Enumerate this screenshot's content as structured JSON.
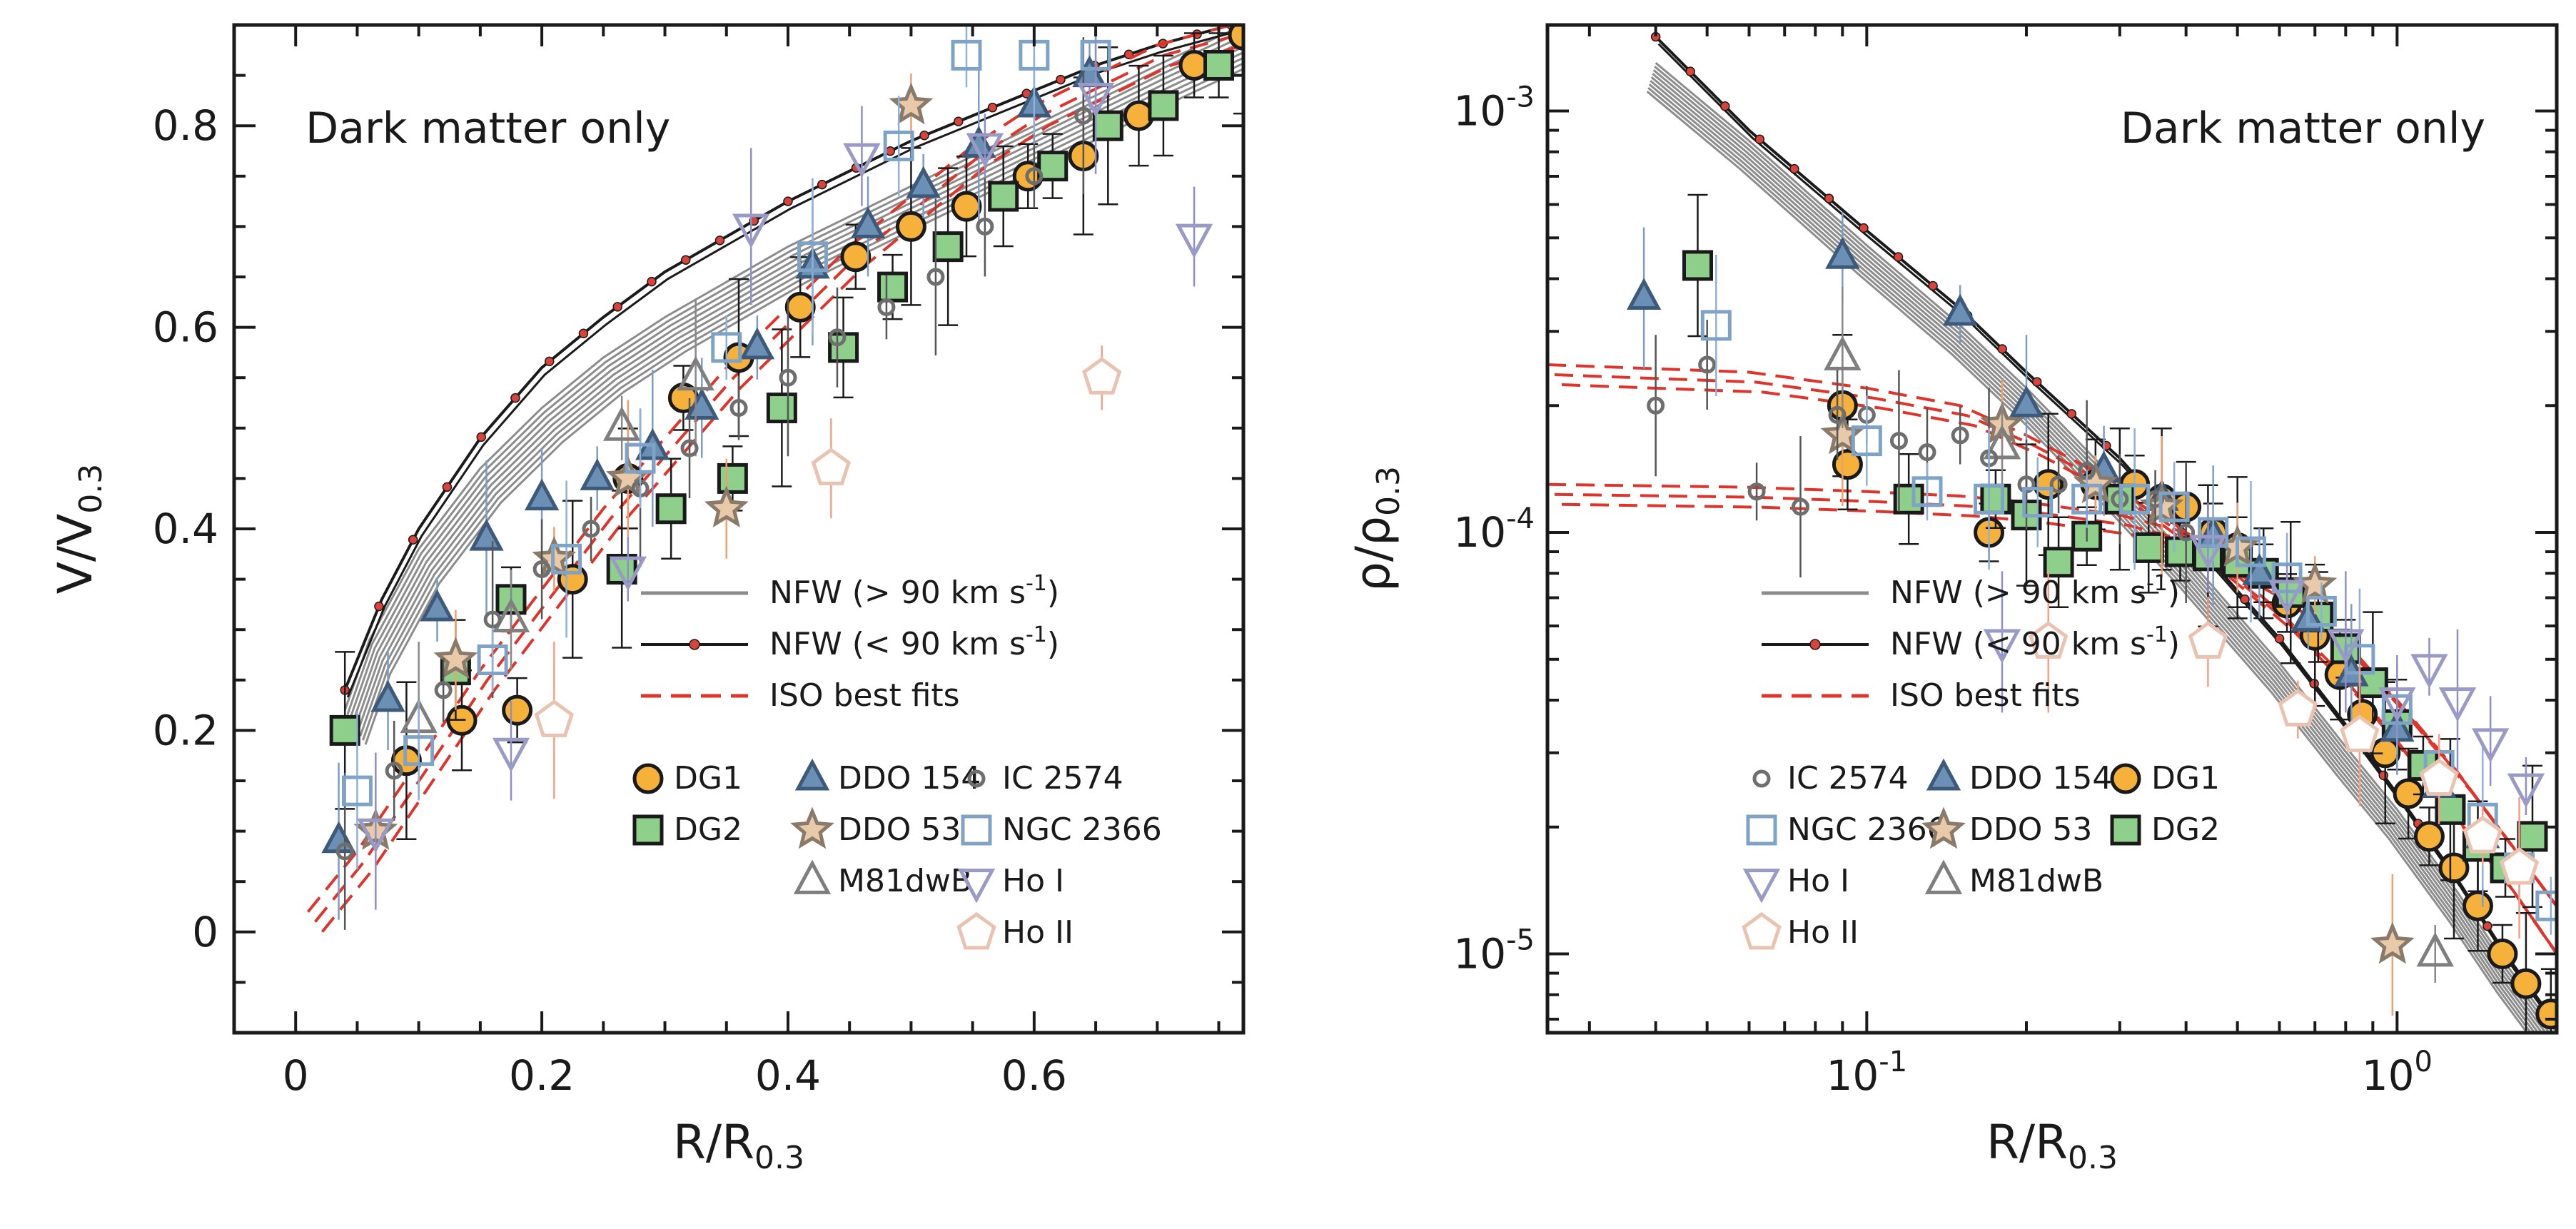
{
  "colors": {
    "nfw_high": "#8c8c8c",
    "nfw_low": "#1a1a1a",
    "nfw_low_marker": "#d9433a",
    "iso": "#e0342b",
    "DG1": "#f6b13a",
    "DG2": "#8fcf8c",
    "DDO154": "#6b8fb5",
    "DDO53": "#e8c9a8",
    "M81dwB": "#7f7f7f",
    "IC2574": "#6e6e6e",
    "NGC2366": "#7fa3c7",
    "HoI": "#9a9ac7",
    "HoII": "#eac3b0"
  },
  "chart_data": [
    {
      "type": "line",
      "panel": "left",
      "annotation": "Dark matter only",
      "xlabel": "R/R",
      "xlabel_sub": "0.3",
      "ylabel": "V/V",
      "ylabel_sub": "0.3",
      "xlim": [
        -0.05,
        0.77
      ],
      "ylim": [
        -0.1,
        0.9
      ],
      "xticks": [
        0,
        0.2,
        0.4,
        0.6
      ],
      "xtick_labels": [
        "0",
        "0.2",
        "0.4",
        "0.6"
      ],
      "yticks": [
        0,
        0.2,
        0.4,
        0.6,
        0.8
      ],
      "ytick_labels": [
        "0",
        "0.2",
        "0.4",
        "0.6",
        "0.8"
      ],
      "curves": [
        {
          "name": "NFW (> 90 km s^-1)",
          "style": "nfw_high",
          "x": [
            0.04,
            0.06,
            0.1,
            0.15,
            0.2,
            0.25,
            0.3,
            0.35,
            0.4,
            0.45,
            0.5,
            0.55,
            0.6,
            0.65,
            0.7,
            0.77
          ],
          "y": [
            0.22,
            0.29,
            0.38,
            0.46,
            0.52,
            0.57,
            0.61,
            0.645,
            0.68,
            0.71,
            0.74,
            0.77,
            0.8,
            0.83,
            0.86,
            0.9
          ]
        },
        {
          "name": "NFW (< 90 km s^-1)",
          "style": "nfw_low",
          "x": [
            0.04,
            0.07,
            0.1,
            0.15,
            0.2,
            0.25,
            0.3,
            0.35,
            0.4,
            0.45,
            0.5,
            0.55,
            0.6,
            0.65,
            0.7,
            0.76
          ],
          "y": [
            0.24,
            0.33,
            0.4,
            0.49,
            0.56,
            0.61,
            0.655,
            0.69,
            0.725,
            0.755,
            0.785,
            0.81,
            0.835,
            0.86,
            0.88,
            0.9
          ]
        },
        {
          "name": "ISO best fits",
          "style": "iso",
          "x": [
            0.01,
            0.05,
            0.1,
            0.15,
            0.2,
            0.25,
            0.3,
            0.35,
            0.4,
            0.45,
            0.5,
            0.55,
            0.6,
            0.65,
            0.7,
            0.76
          ],
          "y": [
            0.02,
            0.08,
            0.17,
            0.26,
            0.34,
            0.42,
            0.49,
            0.56,
            0.62,
            0.68,
            0.73,
            0.78,
            0.82,
            0.85,
            0.88,
            0.9
          ]
        }
      ],
      "series": [
        {
          "name": "DG1",
          "marker": "circle",
          "x": [
            0.09,
            0.135,
            0.18,
            0.225,
            0.27,
            0.315,
            0.36,
            0.41,
            0.455,
            0.5,
            0.545,
            0.595,
            0.64,
            0.685,
            0.73,
            0.77
          ],
          "y": [
            0.17,
            0.21,
            0.22,
            0.35,
            0.45,
            0.53,
            0.57,
            0.62,
            0.67,
            0.7,
            0.72,
            0.75,
            0.77,
            0.81,
            0.86,
            0.89
          ]
        },
        {
          "name": "DG2",
          "marker": "square",
          "x": [
            0.04,
            0.13,
            0.175,
            0.265,
            0.305,
            0.355,
            0.395,
            0.445,
            0.485,
            0.53,
            0.575,
            0.615,
            0.66,
            0.705,
            0.75
          ],
          "y": [
            0.2,
            0.26,
            0.33,
            0.36,
            0.42,
            0.45,
            0.52,
            0.58,
            0.64,
            0.68,
            0.73,
            0.76,
            0.8,
            0.82,
            0.86
          ]
        },
        {
          "name": "DDO 154",
          "marker": "triangle-up",
          "x": [
            0.035,
            0.075,
            0.115,
            0.155,
            0.2,
            0.245,
            0.29,
            0.33,
            0.375,
            0.42,
            0.465,
            0.51,
            0.555,
            0.6,
            0.645
          ],
          "y": [
            0.09,
            0.23,
            0.32,
            0.39,
            0.43,
            0.45,
            0.48,
            0.52,
            0.58,
            0.66,
            0.7,
            0.74,
            0.78,
            0.82,
            0.85
          ]
        },
        {
          "name": "DDO 53",
          "marker": "star",
          "x": [
            0.065,
            0.13,
            0.21,
            0.27,
            0.35,
            0.5
          ],
          "y": [
            0.1,
            0.27,
            0.37,
            0.45,
            0.42,
            0.82
          ]
        },
        {
          "name": "M81dwB",
          "marker": "triangle-up-open",
          "x": [
            0.1,
            0.175,
            0.265,
            0.325
          ],
          "y": [
            0.21,
            0.31,
            0.5,
            0.55
          ]
        },
        {
          "name": "IC 2574",
          "marker": "circle-open-small",
          "x": [
            0.04,
            0.08,
            0.12,
            0.16,
            0.2,
            0.24,
            0.28,
            0.32,
            0.36,
            0.4,
            0.44,
            0.48,
            0.52,
            0.56,
            0.6,
            0.64
          ],
          "y": [
            0.08,
            0.16,
            0.24,
            0.31,
            0.36,
            0.4,
            0.44,
            0.48,
            0.52,
            0.55,
            0.59,
            0.62,
            0.65,
            0.7,
            0.75,
            0.81
          ]
        },
        {
          "name": "NGC 2366",
          "marker": "square-open",
          "x": [
            0.05,
            0.1,
            0.16,
            0.22,
            0.28,
            0.35,
            0.42,
            0.49,
            0.545,
            0.6,
            0.65
          ],
          "y": [
            0.14,
            0.18,
            0.27,
            0.37,
            0.47,
            0.58,
            0.67,
            0.78,
            0.87,
            0.87,
            0.87
          ]
        },
        {
          "name": "Ho I",
          "marker": "triangle-down-open",
          "x": [
            0.065,
            0.175,
            0.27,
            0.37,
            0.46,
            0.56,
            0.65,
            0.73
          ],
          "y": [
            0.1,
            0.18,
            0.36,
            0.7,
            0.77,
            0.78,
            0.83,
            0.69
          ]
        },
        {
          "name": "Ho II",
          "marker": "pentagon-open",
          "x": [
            0.21,
            0.435,
            0.655
          ],
          "y": [
            0.21,
            0.46,
            0.55
          ]
        }
      ],
      "legend_lines": [
        "NFW (> 90 km s",
        "NFW (< 90 km s",
        "ISO best fits"
      ],
      "legend_unit_sup": "-1",
      "legend_markers": [
        "DG1",
        "DDO 154",
        "IC 2574",
        "DG2",
        "DDO 53",
        "NGC 2366",
        "M81dwB",
        "Ho I",
        "Ho II"
      ]
    },
    {
      "type": "line",
      "panel": "right",
      "annotation": "Dark matter only",
      "xscale": "log",
      "yscale": "log",
      "xlabel": "R/R",
      "xlabel_sub": "0.3",
      "ylabel": "ρ/ρ",
      "ylabel_sub": "0.3",
      "xlim": [
        0.025,
        2.0
      ],
      "ylim": [
        6.5e-06,
        0.0016
      ],
      "xticks": [
        0.1,
        1
      ],
      "xtick_base": "10",
      "xtick_exps": [
        "-1",
        "0"
      ],
      "yticks": [
        1e-05,
        0.0001,
        0.001
      ],
      "ytick_base": "10",
      "ytick_exps": [
        "-5",
        "-4",
        "-3"
      ],
      "curves": [
        {
          "name": "NFW (> 90 km s^-1)",
          "style": "nfw_high",
          "x": [
            0.04,
            0.06,
            0.1,
            0.15,
            0.2,
            0.3,
            0.4,
            0.6,
            0.8,
            1.0,
            1.3,
            1.6,
            2.0
          ],
          "y": [
            0.0013,
            0.00085,
            0.00048,
            0.00031,
            0.00022,
            0.00013,
            8.8e-05,
            4.9e-05,
            3.1e-05,
            2.2e-05,
            1.4e-05,
            9.5e-06,
            6.5e-06
          ]
        },
        {
          "name": "NFW (< 90 km s^-1)",
          "style": "nfw_low",
          "x": [
            0.04,
            0.06,
            0.1,
            0.15,
            0.2,
            0.3,
            0.4,
            0.6,
            0.8,
            1.0,
            1.3,
            1.6,
            2.0
          ],
          "y": [
            0.0015,
            0.0009,
            0.00052,
            0.00034,
            0.00024,
            0.00015,
            0.0001,
            5.6e-05,
            3.5e-05,
            2.4e-05,
            1.5e-05,
            1e-05,
            6.8e-06
          ]
        },
        {
          "name": "ISO best fits",
          "style": "iso",
          "x": [
            0.025,
            0.06,
            0.1,
            0.15,
            0.2,
            0.3,
            0.4,
            0.6,
            0.8,
            1.0,
            1.3,
            1.6,
            2.0
          ],
          "y": [
            0.00025,
            0.00024,
            0.00022,
            0.0002,
            0.00017,
            0.00013,
            0.0001,
            6.5e-05,
            4.5e-05,
            3.2e-05,
            2.1e-05,
            1.5e-05,
            1e-05
          ]
        },
        {
          "name": "ISO best fits",
          "style": "iso",
          "x": [
            0.025,
            0.06,
            0.1,
            0.15,
            0.2,
            0.3,
            0.4,
            0.6,
            0.8,
            1.0,
            1.3,
            1.6,
            2.0
          ],
          "y": [
            0.00013,
            0.000128,
            0.000125,
            0.000122,
            0.000118,
            0.00011,
            0.0001,
            7.5e-05,
            5.5e-05,
            4e-05,
            2.7e-05,
            1.9e-05,
            1.3e-05
          ]
        }
      ],
      "series": [
        {
          "name": "DG1",
          "marker": "circle",
          "x": [
            0.09,
            0.092,
            0.17,
            0.22,
            0.27,
            0.32,
            0.36,
            0.4,
            0.45,
            0.5,
            0.56,
            0.62,
            0.7,
            0.78,
            0.86,
            0.95,
            1.05,
            1.15,
            1.28,
            1.42,
            1.58,
            1.75,
            1.95
          ],
          "y": [
            0.0002,
            0.000145,
            0.0001,
            0.00013,
            0.00013,
            0.00013,
            0.00012,
            0.000115,
            0.0001,
            9.2e-05,
            8e-05,
            6.8e-05,
            5.7e-05,
            4.6e-05,
            3.7e-05,
            3e-05,
            2.4e-05,
            1.9e-05,
            1.6e-05,
            1.3e-05,
            1e-05,
            8.5e-06,
            7.2e-06
          ]
        },
        {
          "name": "DG2",
          "marker": "square",
          "x": [
            0.048,
            0.12,
            0.175,
            0.2,
            0.23,
            0.26,
            0.3,
            0.34,
            0.39,
            0.44,
            0.5,
            0.56,
            0.63,
            0.71,
            0.8,
            0.9,
            1.0,
            1.12,
            1.26,
            1.42,
            1.6,
            1.8
          ],
          "y": [
            0.00043,
            0.00012,
            0.00012,
            0.00011,
            8.5e-05,
            9.8e-05,
            0.00012,
            9.2e-05,
            9e-05,
            8.8e-05,
            8.5e-05,
            8e-05,
            7.2e-05,
            6.3e-05,
            5.3e-05,
            4.4e-05,
            3.5e-05,
            2.8e-05,
            2.2e-05,
            1.8e-05,
            1.6e-05,
            1.9e-05
          ]
        },
        {
          "name": "DDO 154",
          "marker": "triangle-up",
          "x": [
            0.038,
            0.09,
            0.15,
            0.2,
            0.28,
            0.36,
            0.45,
            0.55,
            0.68,
            0.82,
            1.0,
            1.2,
            1.45
          ],
          "y": [
            0.00036,
            0.00045,
            0.00033,
            0.0002,
            0.00014,
            0.00012,
            9.8e-05,
            8e-05,
            6.2e-05,
            4.6e-05,
            3.4e-05,
            2.5e-05,
            1.9e-05
          ]
        },
        {
          "name": "DDO 53",
          "marker": "star",
          "x": [
            0.09,
            0.18,
            0.27,
            0.36,
            0.5,
            0.7,
            0.98
          ],
          "y": [
            0.00017,
            0.00018,
            0.00013,
            0.000115,
            9.2e-05,
            7.5e-05,
            1.05e-05
          ]
        },
        {
          "name": "M81dwB",
          "marker": "triangle-up-open",
          "x": [
            0.09,
            0.18,
            1.18
          ],
          "y": [
            0.00026,
            0.00016,
            1e-05
          ]
        },
        {
          "name": "IC 2574",
          "marker": "circle-open-small",
          "x": [
            0.04,
            0.05,
            0.062,
            0.075,
            0.088,
            0.1,
            0.115,
            0.13,
            0.15,
            0.17,
            0.2,
            0.23,
            0.26,
            0.3,
            0.35,
            0.4
          ],
          "y": [
            0.0002,
            0.00025,
            0.000125,
            0.000115,
            0.00019,
            0.00019,
            0.000165,
            0.000155,
            0.00017,
            0.00015,
            0.00013,
            0.00013,
            0.00014,
            0.00012,
            0.00012,
            0.0001
          ]
        },
        {
          "name": "NGC 2366",
          "marker": "square-open",
          "x": [
            0.052,
            0.1,
            0.13,
            0.17,
            0.21,
            0.26,
            0.32,
            0.38,
            0.45,
            0.53,
            0.62,
            0.72,
            0.85,
            1.0,
            1.2,
            1.45,
            1.7,
            1.95
          ],
          "y": [
            0.00031,
            0.000165,
            0.000125,
            0.00012,
            0.000118,
            0.00012,
            0.00012,
            0.000115,
            0.0001,
            9e-05,
            7.8e-05,
            6.5e-05,
            5e-05,
            3.8e-05,
            2.8e-05,
            2.1e-05,
            1.6e-05,
            1.3e-05
          ]
        },
        {
          "name": "Ho I",
          "marker": "triangle-down-open",
          "x": [
            0.18,
            0.44,
            0.62,
            0.8,
            1.0,
            1.15,
            1.3,
            1.5,
            1.75
          ],
          "y": [
            5.5e-05,
            9.2e-05,
            7.2e-05,
            5.5e-05,
            4e-05,
            4.8e-05,
            4e-05,
            3.2e-05,
            2.5e-05
          ]
        },
        {
          "name": "Ho II",
          "marker": "pentagon-open",
          "x": [
            0.22,
            0.44,
            0.65,
            0.85,
            1.2,
            1.45,
            1.7
          ],
          "y": [
            5.5e-05,
            5.5e-05,
            3.8e-05,
            3.3e-05,
            2.6e-05,
            1.9e-05,
            1.6e-05
          ]
        }
      ],
      "legend_lines": [
        "NFW (> 90 km s",
        "NFW (< 90 km s",
        "ISO best fits"
      ],
      "legend_unit_sup": "-1",
      "legend_markers": [
        "IC 2574",
        "DDO 154",
        "DG1",
        "NGC 2366",
        "DDO 53",
        "DG2",
        "Ho I",
        "M81dwB",
        "Ho II"
      ]
    }
  ]
}
